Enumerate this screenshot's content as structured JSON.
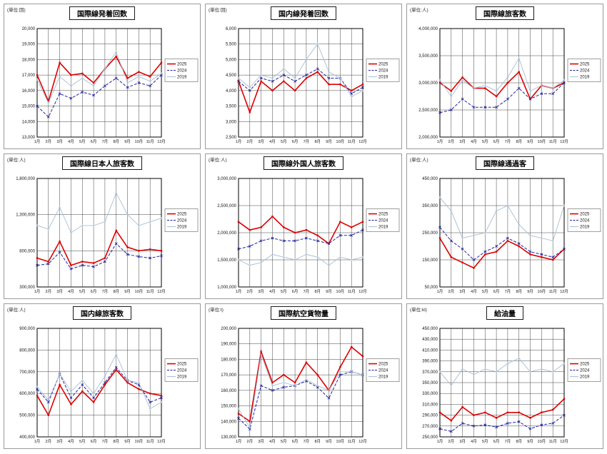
{
  "chart_data": [
    {
      "type": "line",
      "title": "国際線発着回数",
      "unit_label": "(単位:回)",
      "categories": [
        "1月",
        "2月",
        "3月",
        "4月",
        "5月",
        "6月",
        "7月",
        "8月",
        "9月",
        "10月",
        "11月",
        "12月"
      ],
      "ylim": [
        13000,
        20000
      ],
      "ytick_step": 1000,
      "grid": true,
      "legend_position": "right",
      "series": [
        {
          "name": "2025",
          "color": "#dd0000",
          "line_style": "solid-thick",
          "values": [
            17000,
            15300,
            17800,
            17000,
            17100,
            16500,
            17400,
            18200,
            16800,
            17200,
            16900,
            17800
          ]
        },
        {
          "name": "2024",
          "color": "#2222a0",
          "line_style": "dashdot",
          "values": [
            15000,
            14300,
            15800,
            15500,
            15900,
            15700,
            16300,
            16800,
            16200,
            16500,
            16300,
            17000
          ]
        },
        {
          "name": "2019",
          "color": "#a6bed2",
          "line_style": "solid-thin",
          "values": [
            16700,
            15200,
            16900,
            16300,
            16800,
            16300,
            17400,
            18500,
            16500,
            16900,
            16600,
            17100
          ]
        }
      ]
    },
    {
      "type": "line",
      "title": "国内線発着回数",
      "unit_label": "(単位:回)",
      "categories": [
        "1月",
        "2月",
        "3月",
        "4月",
        "5月",
        "6月",
        "7月",
        "8月",
        "9月",
        "10月",
        "11月",
        "12月"
      ],
      "ylim": [
        2500,
        6000
      ],
      "ytick_step": 500,
      "grid": true,
      "legend_position": "right",
      "series": [
        {
          "name": "2025",
          "color": "#dd0000",
          "line_style": "solid-thick",
          "values": [
            4300,
            3300,
            4300,
            4000,
            4300,
            4000,
            4400,
            4600,
            4200,
            4200,
            4000,
            4200
          ]
        },
        {
          "name": "2024",
          "color": "#2222a0",
          "line_style": "dashdot",
          "values": [
            4300,
            4000,
            4400,
            4300,
            4500,
            4300,
            4500,
            4700,
            4400,
            4400,
            3900,
            4100
          ]
        },
        {
          "name": "2019",
          "color": "#a6bed2",
          "line_style": "solid-thin",
          "values": [
            4400,
            4100,
            4500,
            4400,
            4700,
            4400,
            5000,
            5500,
            4600,
            4400,
            3800,
            4000
          ]
        }
      ]
    },
    {
      "type": "line",
      "title": "国際線旅客数",
      "unit_label": "(単位:人)",
      "categories": [
        "1月",
        "2月",
        "3月",
        "4月",
        "5月",
        "6月",
        "7月",
        "8月",
        "9月",
        "10月",
        "11月",
        "12月"
      ],
      "ylim": [
        2000000,
        4000000
      ],
      "ytick_step": 500000,
      "grid": true,
      "legend_position": "right",
      "series": [
        {
          "name": "2025",
          "color": "#dd0000",
          "line_style": "solid-thick",
          "values": [
            3000000,
            2850000,
            3100000,
            2900000,
            2900000,
            2750000,
            3000000,
            3200000,
            2700000,
            2950000,
            2900000,
            3000000
          ]
        },
        {
          "name": "2024",
          "color": "#2222a0",
          "line_style": "dashdot",
          "values": [
            2450000,
            2500000,
            2700000,
            2550000,
            2550000,
            2550000,
            2700000,
            2900000,
            2700000,
            2800000,
            2800000,
            3000000
          ]
        },
        {
          "name": "2019",
          "color": "#a6bed2",
          "line_style": "solid-thin",
          "values": [
            3050000,
            2750000,
            3050000,
            2900000,
            2950000,
            2850000,
            3100000,
            3450000,
            2850000,
            2950000,
            2900000,
            3050000
          ]
        }
      ]
    },
    {
      "type": "line",
      "title": "国際線日本人旅客数",
      "unit_label": "(単位:人)",
      "categories": [
        "1月",
        "2月",
        "3月",
        "4月",
        "5月",
        "6月",
        "7月",
        "8月",
        "9月",
        "10月",
        "11月",
        "12月"
      ],
      "ylim": [
        300000,
        1800000
      ],
      "ytick_step": 500000,
      "grid": true,
      "legend_position": "right",
      "series": [
        {
          "name": "2025",
          "color": "#dd0000",
          "line_style": "solid-thick",
          "values": [
            700000,
            650000,
            930000,
            600000,
            650000,
            630000,
            700000,
            1080000,
            850000,
            800000,
            820000,
            800000
          ]
        },
        {
          "name": "2024",
          "color": "#2222a0",
          "line_style": "dashdot",
          "values": [
            600000,
            620000,
            780000,
            550000,
            600000,
            580000,
            650000,
            900000,
            750000,
            720000,
            700000,
            730000
          ]
        },
        {
          "name": "2019",
          "color": "#a6bed2",
          "line_style": "solid-thin",
          "values": [
            1150000,
            1100000,
            1400000,
            1050000,
            1150000,
            1150000,
            1200000,
            1600000,
            1300000,
            1150000,
            1200000,
            1250000
          ]
        }
      ]
    },
    {
      "type": "line",
      "title": "国際線外国人旅客数",
      "unit_label": "(単位:人)",
      "categories": [
        "1月",
        "2月",
        "3月",
        "4月",
        "5月",
        "6月",
        "7月",
        "8月",
        "9月",
        "10月",
        "11月",
        "12月"
      ],
      "ylim": [
        1000000,
        3000000
      ],
      "ytick_step": 500000,
      "grid": true,
      "legend_position": "right",
      "series": [
        {
          "name": "2025",
          "color": "#dd0000",
          "line_style": "solid-thick",
          "values": [
            2200000,
            2050000,
            2100000,
            2300000,
            2100000,
            2000000,
            2050000,
            1950000,
            1800000,
            2200000,
            2100000,
            2200000
          ]
        },
        {
          "name": "2024",
          "color": "#2222a0",
          "line_style": "dashdot",
          "values": [
            1700000,
            1750000,
            1850000,
            1900000,
            1850000,
            1850000,
            1900000,
            1850000,
            1800000,
            1950000,
            1950000,
            2050000
          ]
        },
        {
          "name": "2019",
          "color": "#a6bed2",
          "line_style": "solid-thin",
          "values": [
            1500000,
            1400000,
            1450000,
            1600000,
            1550000,
            1500000,
            1600000,
            1550000,
            1400000,
            1550000,
            1500000,
            1550000
          ]
        }
      ]
    },
    {
      "type": "line",
      "title": "国際線通過客",
      "unit_label": "(単位:人)",
      "categories": [
        "1月",
        "2月",
        "3月",
        "4月",
        "5月",
        "6月",
        "7月",
        "8月",
        "9月",
        "10月",
        "11月",
        "12月"
      ],
      "ylim": [
        50000,
        450000
      ],
      "ytick_step": 100000,
      "grid": true,
      "legend_position": "right",
      "series": [
        {
          "name": "2025",
          "color": "#dd0000",
          "line_style": "solid-thick",
          "values": [
            230000,
            160000,
            140000,
            120000,
            170000,
            180000,
            220000,
            200000,
            170000,
            160000,
            150000,
            190000
          ]
        },
        {
          "name": "2024",
          "color": "#2222a0",
          "line_style": "dashdot",
          "values": [
            270000,
            220000,
            190000,
            150000,
            180000,
            200000,
            230000,
            210000,
            180000,
            170000,
            160000,
            190000
          ]
        },
        {
          "name": "2019",
          "color": "#a6bed2",
          "line_style": "solid-thin",
          "values": [
            380000,
            330000,
            230000,
            240000,
            250000,
            330000,
            350000,
            280000,
            240000,
            230000,
            220000,
            350000
          ]
        }
      ]
    },
    {
      "type": "line",
      "title": "国内線旅客数",
      "unit_label": "(単位:人)",
      "categories": [
        "1月",
        "2月",
        "3月",
        "4月",
        "5月",
        "6月",
        "7月",
        "8月",
        "9月",
        "10月",
        "11月",
        "12月"
      ],
      "ylim": [
        400000,
        900000
      ],
      "ytick_step": 100000,
      "grid": true,
      "legend_position": "right",
      "series": [
        {
          "name": "2025",
          "color": "#dd0000",
          "line_style": "solid-thick",
          "values": [
            590000,
            500000,
            640000,
            550000,
            610000,
            560000,
            640000,
            710000,
            650000,
            620000,
            600000,
            590000
          ]
        },
        {
          "name": "2024",
          "color": "#2222a0",
          "line_style": "dashdot",
          "values": [
            620000,
            560000,
            690000,
            580000,
            640000,
            580000,
            650000,
            720000,
            660000,
            640000,
            560000,
            580000
          ]
        },
        {
          "name": "2019",
          "color": "#a6bed2",
          "line_style": "solid-thin",
          "values": [
            630000,
            570000,
            690000,
            610000,
            660000,
            600000,
            680000,
            780000,
            660000,
            650000,
            530000,
            560000
          ]
        }
      ]
    },
    {
      "type": "line",
      "title": "国際航空貨物量",
      "unit_label": "(単位:t)",
      "categories": [
        "1月",
        "2月",
        "3月",
        "4月",
        "5月",
        "6月",
        "7月",
        "8月",
        "9月",
        "10月",
        "11月",
        "12月"
      ],
      "ylim": [
        130000,
        200000
      ],
      "ytick_step": 10000,
      "grid": true,
      "legend_position": "right",
      "series": [
        {
          "name": "2025",
          "color": "#dd0000",
          "line_style": "solid-thick",
          "values": [
            145000,
            140000,
            185000,
            165000,
            170000,
            165000,
            178000,
            170000,
            160000,
            175000,
            188000,
            182000
          ]
        },
        {
          "name": "2024",
          "color": "#2222a0",
          "line_style": "dashdot",
          "values": [
            142000,
            135000,
            163000,
            160000,
            162000,
            163000,
            166000,
            162000,
            155000,
            170000,
            172000,
            170000
          ]
        },
        {
          "name": "2019",
          "color": "#a6bed2",
          "line_style": "solid-thin",
          "values": [
            148000,
            136000,
            183000,
            163000,
            165000,
            163000,
            167000,
            163000,
            160000,
            172000,
            172000,
            170000
          ]
        }
      ]
    },
    {
      "type": "line",
      "title": "給油量",
      "unit_label": "(単位:kl)",
      "categories": [
        "1月",
        "2月",
        "3月",
        "4月",
        "5月",
        "6月",
        "7月",
        "8月",
        "9月",
        "10月",
        "11月",
        "12月"
      ],
      "ylim": [
        250000,
        450000
      ],
      "ytick_step": 20000,
      "grid": true,
      "legend_position": "right",
      "series": [
        {
          "name": "2025",
          "color": "#dd0000",
          "line_style": "solid-thick",
          "values": [
            295000,
            280000,
            305000,
            290000,
            295000,
            285000,
            295000,
            295000,
            285000,
            295000,
            300000,
            320000
          ]
        },
        {
          "name": "2024",
          "color": "#2222a0",
          "line_style": "dashdot",
          "values": [
            265000,
            260000,
            275000,
            270000,
            272000,
            268000,
            275000,
            278000,
            265000,
            272000,
            275000,
            290000
          ]
        },
        {
          "name": "2019",
          "color": "#a6bed2",
          "line_style": "solid-thin",
          "values": [
            370000,
            345000,
            375000,
            365000,
            375000,
            370000,
            385000,
            395000,
            370000,
            375000,
            370000,
            385000
          ]
        }
      ]
    }
  ]
}
